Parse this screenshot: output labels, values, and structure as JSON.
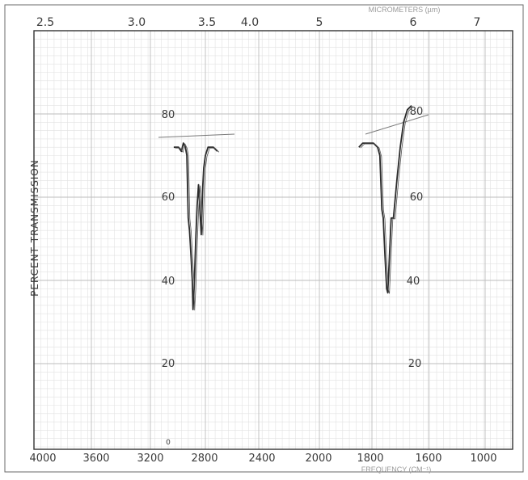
{
  "chart_data": {
    "type": "line",
    "top_axis_label": "MICROMETERS (µm)",
    "bottom_axis_label": "FREQUENCY (CM⁻¹)",
    "ylabel": "PERCENT TRANSMISSION",
    "top_ticks": [
      "2.5",
      "3.0",
      "3.5",
      "4.0",
      "5",
      "6",
      "7"
    ],
    "bottom_ticks": [
      "4000",
      "3600",
      "3200",
      "2800",
      "2400",
      "2000",
      "1800",
      "1600",
      "1000"
    ],
    "inner_ticks_left": [
      "80",
      "60",
      "40",
      "20",
      "0"
    ],
    "inner_ticks_right": [
      "80",
      "60",
      "40",
      "20"
    ],
    "series": [
      {
        "points": [
          [
            3030,
            72
          ],
          [
            2995,
            72
          ],
          [
            2975,
            71
          ],
          [
            2960,
            73
          ],
          [
            2945,
            72
          ],
          [
            2935,
            70
          ],
          [
            2925,
            55
          ],
          [
            2915,
            52
          ],
          [
            2905,
            46
          ],
          [
            2895,
            40
          ],
          [
            2890,
            33
          ],
          [
            2882,
            38
          ],
          [
            2872,
            48
          ],
          [
            2860,
            58
          ],
          [
            2850,
            63
          ],
          [
            2840,
            57
          ],
          [
            2830,
            51
          ],
          [
            2820,
            62
          ],
          [
            2812,
            67
          ],
          [
            2800,
            70
          ],
          [
            2780,
            72
          ],
          [
            2740,
            72
          ],
          [
            2710,
            71
          ]
        ]
      },
      {
        "points": [
          [
            1850,
            72
          ],
          [
            1835,
            73
          ],
          [
            1815,
            73
          ],
          [
            1795,
            73
          ],
          [
            1780,
            72
          ],
          [
            1772,
            70
          ],
          [
            1765,
            57
          ],
          [
            1760,
            55
          ],
          [
            1754,
            46
          ],
          [
            1748,
            38
          ],
          [
            1744,
            37
          ],
          [
            1738,
            46
          ],
          [
            1732,
            55
          ],
          [
            1724,
            55
          ],
          [
            1712,
            64
          ],
          [
            1700,
            72
          ],
          [
            1688,
            78
          ],
          [
            1675,
            81
          ],
          [
            1660,
            82
          ]
        ]
      }
    ]
  }
}
